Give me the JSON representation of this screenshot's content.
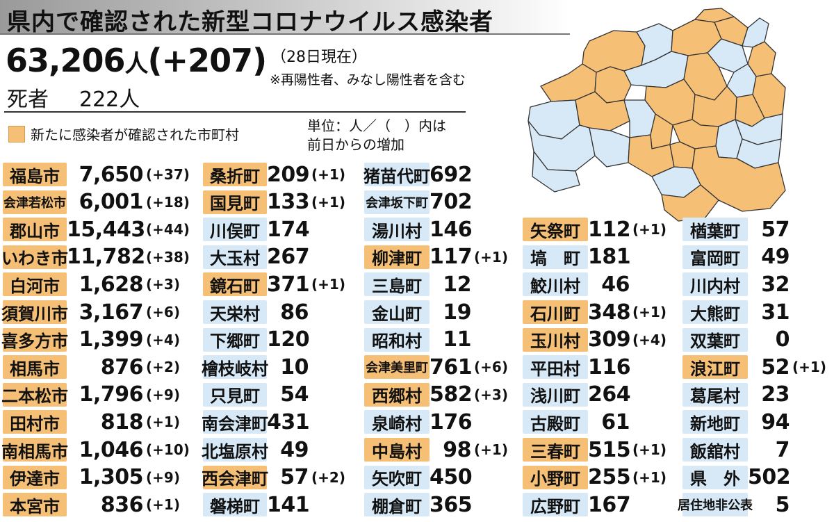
{
  "title": "県内で確認された新型コロナウイルス感染者",
  "total": {
    "count": "63,206",
    "unit": "人",
    "increase": "(+207)"
  },
  "date_note": "（28日現在）",
  "note": "※再陽性者、みなし陽性者を含む",
  "deaths": {
    "label": "死者",
    "value": "222人"
  },
  "legend": {
    "label": "新たに感染者が確認された市町村",
    "color": "#f5bf76"
  },
  "unit_note": {
    "line1": "単位：人／（　）内は",
    "line2": "前日からの増加"
  },
  "colors": {
    "new_case": "#f5bf76",
    "no_new_case": "#d7e9f7"
  },
  "columns": [
    [
      {
        "name": "福島市",
        "value": "7,650",
        "inc": "(+37)",
        "new": true
      },
      {
        "name": "会津若松市",
        "value": "6,001",
        "inc": "(+18)",
        "new": true
      },
      {
        "name": "郡山市",
        "value": "15,443",
        "inc": "(+44)",
        "new": true
      },
      {
        "name": "いわき市",
        "value": "11,782",
        "inc": "(+38)",
        "new": true
      },
      {
        "name": "白河市",
        "value": "1,628",
        "inc": "(+3)",
        "new": true
      },
      {
        "name": "須賀川市",
        "value": "3,167",
        "inc": "(+6)",
        "new": true
      },
      {
        "name": "喜多方市",
        "value": "1,399",
        "inc": "(+4)",
        "new": true
      },
      {
        "name": "相馬市",
        "value": "876",
        "inc": "(+2)",
        "new": true
      },
      {
        "name": "二本松市",
        "value": "1,796",
        "inc": "(+9)",
        "new": true
      },
      {
        "name": "田村市",
        "value": "818",
        "inc": "(+1)",
        "new": true
      },
      {
        "name": "南相馬市",
        "value": "1,046",
        "inc": "(+10)",
        "new": true
      },
      {
        "name": "伊達市",
        "value": "1,305",
        "inc": "(+9)",
        "new": true
      },
      {
        "name": "本宮市",
        "value": "836",
        "inc": "(+1)",
        "new": true
      }
    ],
    [
      {
        "name": "桑折町",
        "value": "209",
        "inc": "(+1)",
        "new": true
      },
      {
        "name": "国見町",
        "value": "133",
        "inc": "(+1)",
        "new": true
      },
      {
        "name": "川俣町",
        "value": "174",
        "inc": "",
        "new": false
      },
      {
        "name": "大玉村",
        "value": "267",
        "inc": "",
        "new": false
      },
      {
        "name": "鏡石町",
        "value": "371",
        "inc": "(+1)",
        "new": true
      },
      {
        "name": "天栄村",
        "value": "86",
        "inc": "",
        "new": false
      },
      {
        "name": "下郷町",
        "value": "120",
        "inc": "",
        "new": false
      },
      {
        "name": "檜枝岐村",
        "value": "10",
        "inc": "",
        "new": false
      },
      {
        "name": "只見町",
        "value": "54",
        "inc": "",
        "new": false
      },
      {
        "name": "南会津町",
        "value": "431",
        "inc": "",
        "new": false
      },
      {
        "name": "北塩原村",
        "value": "49",
        "inc": "",
        "new": false
      },
      {
        "name": "西会津町",
        "value": "57",
        "inc": "(+2)",
        "new": true
      },
      {
        "name": "磐梯町",
        "value": "141",
        "inc": "",
        "new": false
      }
    ],
    [
      {
        "name": "猪苗代町",
        "value": "692",
        "inc": "",
        "new": false
      },
      {
        "name": "会津坂下町",
        "value": "702",
        "inc": "",
        "new": false
      },
      {
        "name": "湯川村",
        "value": "146",
        "inc": "",
        "new": false
      },
      {
        "name": "柳津町",
        "value": "117",
        "inc": "(+1)",
        "new": true
      },
      {
        "name": "三島町",
        "value": "12",
        "inc": "",
        "new": false
      },
      {
        "name": "金山町",
        "value": "19",
        "inc": "",
        "new": false
      },
      {
        "name": "昭和村",
        "value": "11",
        "inc": "",
        "new": false
      },
      {
        "name": "会津美里町",
        "value": "761",
        "inc": "(+6)",
        "new": true
      },
      {
        "name": "西郷村",
        "value": "582",
        "inc": "(+3)",
        "new": true
      },
      {
        "name": "泉崎村",
        "value": "176",
        "inc": "",
        "new": false
      },
      {
        "name": "中島村",
        "value": "98",
        "inc": "(+1)",
        "new": true
      },
      {
        "name": "矢吹町",
        "value": "450",
        "inc": "",
        "new": false
      },
      {
        "name": "棚倉町",
        "value": "365",
        "inc": "",
        "new": false
      }
    ],
    [
      {
        "name": "矢祭町",
        "value": "112",
        "inc": "(+1)",
        "new": true
      },
      {
        "name": "塙　町",
        "value": "181",
        "inc": "",
        "new": false
      },
      {
        "name": "鮫川村",
        "value": "46",
        "inc": "",
        "new": false
      },
      {
        "name": "石川町",
        "value": "348",
        "inc": "(+1)",
        "new": true
      },
      {
        "name": "玉川村",
        "value": "309",
        "inc": "(+4)",
        "new": true
      },
      {
        "name": "平田村",
        "value": "116",
        "inc": "",
        "new": false
      },
      {
        "name": "浅川町",
        "value": "264",
        "inc": "",
        "new": false
      },
      {
        "name": "古殿町",
        "value": "61",
        "inc": "",
        "new": false
      },
      {
        "name": "三春町",
        "value": "515",
        "inc": "(+1)",
        "new": true
      },
      {
        "name": "小野町",
        "value": "255",
        "inc": "(+1)",
        "new": true
      },
      {
        "name": "広野町",
        "value": "167",
        "inc": "",
        "new": false
      }
    ],
    [
      {
        "name": "楢葉町",
        "value": "57",
        "inc": "",
        "new": false
      },
      {
        "name": "富岡町",
        "value": "49",
        "inc": "",
        "new": false
      },
      {
        "name": "川内村",
        "value": "32",
        "inc": "",
        "new": false
      },
      {
        "name": "大熊町",
        "value": "31",
        "inc": "",
        "new": false
      },
      {
        "name": "双葉町",
        "value": "0",
        "inc": "",
        "new": false
      },
      {
        "name": "浪江町",
        "value": "52",
        "inc": "(+1)",
        "new": true
      },
      {
        "name": "葛尾村",
        "value": "23",
        "inc": "",
        "new": false
      },
      {
        "name": "新地町",
        "value": "94",
        "inc": "",
        "new": false
      },
      {
        "name": "飯舘村",
        "value": "7",
        "inc": "",
        "new": false
      },
      {
        "name": "県　外",
        "value": "502",
        "inc": "",
        "new": false
      },
      {
        "name": "居住地非公表",
        "value": "5",
        "inc": "",
        "new": false
      }
    ]
  ]
}
